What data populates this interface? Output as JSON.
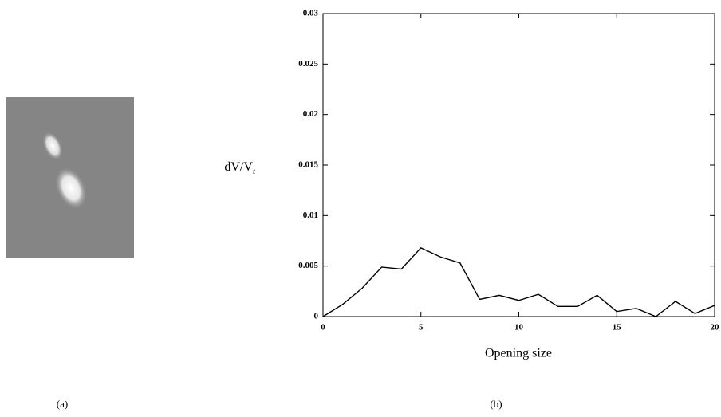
{
  "image": {
    "panel_label": "(a)"
  },
  "chart_data": {
    "type": "line",
    "panel_label": "(b)",
    "x_label": "Opening size",
    "y_label": {
      "main": "dV/V",
      "subscript": "t"
    },
    "x": [
      0,
      1,
      2,
      3,
      4,
      5,
      6,
      7,
      8,
      9,
      10,
      11,
      12,
      13,
      14,
      15,
      16,
      17,
      18,
      19,
      20
    ],
    "values": [
      0,
      0.0012,
      0.0028,
      0.0049,
      0.0047,
      0.0068,
      0.0059,
      0.0053,
      0.0017,
      0.0021,
      0.0016,
      0.0022,
      0.001,
      0.001,
      0.0021,
      0.0005,
      0.0008,
      0,
      0.0015,
      0.0003,
      0.0011
    ],
    "color": "#000000",
    "xlim": [
      0,
      20
    ],
    "xticks": [
      0,
      5,
      10,
      15,
      20
    ],
    "ylim": [
      0,
      0.03
    ],
    "yticks": [
      0,
      0.005,
      0.01,
      0.015,
      0.02,
      0.025,
      0.03
    ]
  }
}
